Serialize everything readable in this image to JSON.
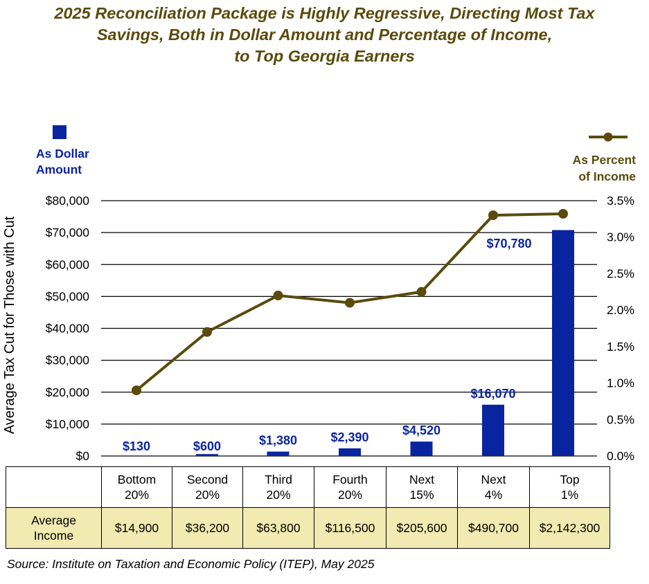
{
  "title_lines": [
    "2025 Reconciliation Package is Highly Regressive, Directing Most Tax",
    "Savings, Both in Dollar Amount and Percentage of Income,",
    "to Top Georgia Earners"
  ],
  "legend": {
    "bar": [
      "As Dollar",
      "Amount"
    ],
    "line": [
      "As Percent",
      "of Income"
    ]
  },
  "colors": {
    "bar": "#0a24a0",
    "line": "#5a4a0c",
    "title": "#5a4a0c",
    "table_fill": "#f1eab1"
  },
  "chart_data": {
    "type": "bar",
    "title": "2025 Reconciliation Package is Highly Regressive, Directing Most Tax Savings, Both in Dollar Amount and Percentage of Income, to Top Georgia Earners",
    "ylabel": "Average Tax Cut for Those with Cut",
    "categories": [
      "Bottom 20%",
      "Second 20%",
      "Third 20%",
      "Fourth 20%",
      "Next 15%",
      "Next 4%",
      "Top 1%"
    ],
    "series": [
      {
        "name": "As Dollar Amount",
        "type": "bar",
        "axis": "left",
        "values": [
          130,
          600,
          1380,
          2390,
          4520,
          16070,
          70780
        ],
        "labels": [
          "$130",
          "$600",
          "$1,380",
          "$2,390",
          "$4,520",
          "$16,070",
          "$70,780"
        ]
      },
      {
        "name": "As Percent of Income",
        "type": "line",
        "axis": "right",
        "values": [
          0.9,
          1.7,
          2.2,
          2.1,
          2.25,
          3.3,
          3.32
        ]
      }
    ],
    "y_left": {
      "min": 0,
      "max": 80000,
      "step": 10000,
      "ticks": [
        "$0",
        "$10,000",
        "$20,000",
        "$30,000",
        "$40,000",
        "$50,000",
        "$60,000",
        "$70,000",
        "$80,000"
      ]
    },
    "y_right": {
      "min": 0,
      "max": 3.5,
      "step": 0.5,
      "ticks": [
        "0.0%",
        "0.5%",
        "1.0%",
        "1.5%",
        "2.0%",
        "2.5%",
        "3.0%",
        "3.5%"
      ]
    },
    "grid": true,
    "legend_placement": "top"
  },
  "table": {
    "groups": [
      [
        "Bottom",
        "20%"
      ],
      [
        "Second",
        "20%"
      ],
      [
        "Third",
        "20%"
      ],
      [
        "Fourth",
        "20%"
      ],
      [
        "Next",
        "15%"
      ],
      [
        "Next",
        "4%"
      ],
      [
        "Top",
        "1%"
      ]
    ],
    "income_label": [
      "Average",
      "Income"
    ],
    "incomes": [
      "$14,900",
      "$36,200",
      "$63,800",
      "$116,500",
      "$205,600",
      "$490,700",
      "$2,142,300"
    ]
  },
  "source": "Source: Institute on Taxation and Economic Policy (ITEP), May 2025"
}
